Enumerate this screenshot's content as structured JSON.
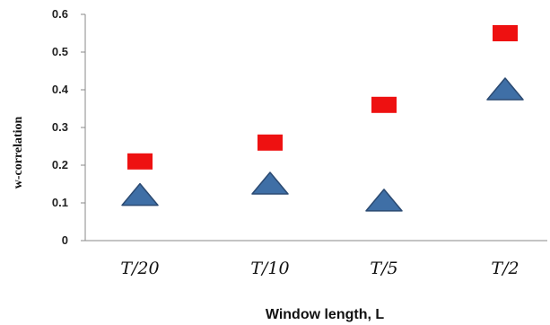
{
  "chart_data": {
    "type": "scatter",
    "categories": [
      "T/20",
      "T/10",
      "T/5",
      "T/2"
    ],
    "xlabel": "Window length, L",
    "ylabel": "w-correlation",
    "ylim": [
      0,
      0.6
    ],
    "yticks": [
      "0",
      "0.1",
      "0.2",
      "0.3",
      "0.4",
      "0.5",
      "0.6"
    ],
    "grid": false,
    "legend": "none",
    "series": [
      {
        "marker": "square",
        "color": "#ee1111",
        "values": [
          0.21,
          0.26,
          0.36,
          0.55
        ]
      },
      {
        "marker": "triangle",
        "color": "#3f6fa6",
        "values": [
          0.12,
          0.15,
          0.105,
          0.4
        ]
      }
    ]
  }
}
